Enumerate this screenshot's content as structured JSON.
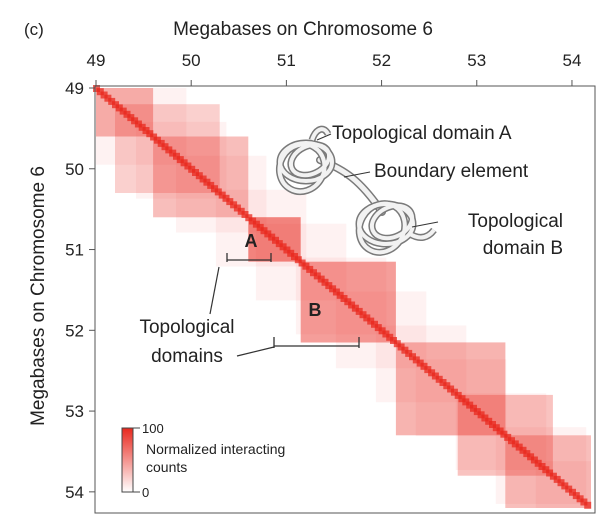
{
  "panel_label": "(c)",
  "chart_data": {
    "type": "heatmap",
    "title": "",
    "xlabel": "Megabases on Chromosome 6",
    "ylabel": "Megabases on Chromosome 6",
    "x_ticks": [
      49,
      50,
      51,
      52,
      53,
      54
    ],
    "y_ticks": [
      49,
      50,
      51,
      52,
      53,
      54
    ],
    "xlim": [
      49,
      54.2
    ],
    "ylim": [
      49,
      54.2
    ],
    "colorscale": {
      "label": "Normalized interacting counts",
      "min": 0,
      "max": 100,
      "min_label": "0",
      "max_label": "100",
      "color_low": "#ffffff",
      "color_high": "#e8281e"
    },
    "domains": [
      {
        "label": "A",
        "start": 50.6,
        "end": 51.15,
        "intensity": 0.55
      },
      {
        "label": "B",
        "start": 51.15,
        "end": 52.15,
        "intensity": 0.45
      }
    ],
    "background_domains": [
      {
        "start": 49.0,
        "end": 49.6,
        "intensity": 0.35
      },
      {
        "start": 49.2,
        "end": 50.3,
        "intensity": 0.22
      },
      {
        "start": 49.6,
        "end": 50.6,
        "intensity": 0.3
      },
      {
        "start": 52.15,
        "end": 53.3,
        "intensity": 0.35
      },
      {
        "start": 52.8,
        "end": 53.8,
        "intensity": 0.28
      },
      {
        "start": 53.3,
        "end": 54.2,
        "intensity": 0.3
      }
    ],
    "annotations": {
      "label_a": "A",
      "label_b": "B",
      "topological_domains": [
        "Topological",
        "domains"
      ]
    }
  },
  "diagram": {
    "domain_a": "Topological domain A",
    "boundary": "Boundary element",
    "domain_b": [
      "Topological",
      "domain B"
    ]
  }
}
